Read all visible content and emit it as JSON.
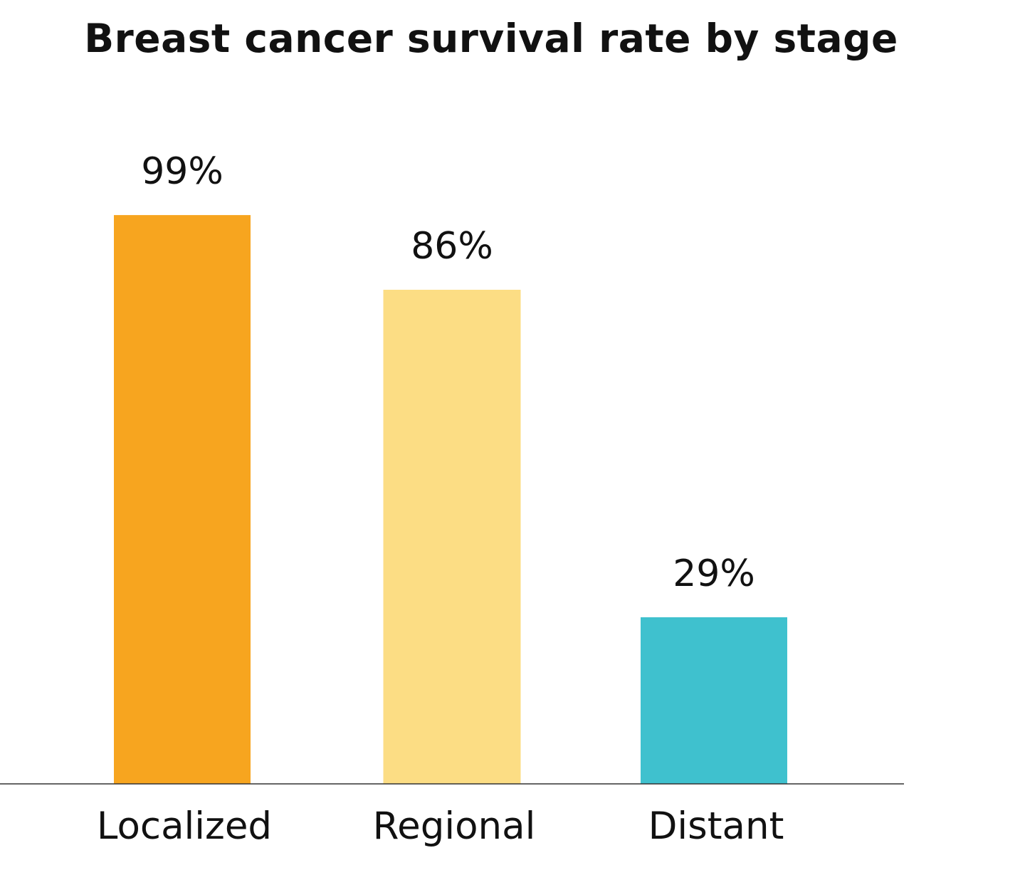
{
  "chart_data": {
    "type": "bar",
    "title": "Breast cancer survival rate by stage",
    "categories": [
      "Localized",
      "Regional",
      "Distant"
    ],
    "values": [
      99,
      86,
      29
    ],
    "value_labels": [
      "99%",
      "86%",
      "29%"
    ],
    "colors": [
      "#F7A51F",
      "#FCDD84",
      "#3FC1CE"
    ],
    "xlabel": "",
    "ylabel": "",
    "ylim": [
      0,
      100
    ],
    "grid": false,
    "legend": "none"
  }
}
